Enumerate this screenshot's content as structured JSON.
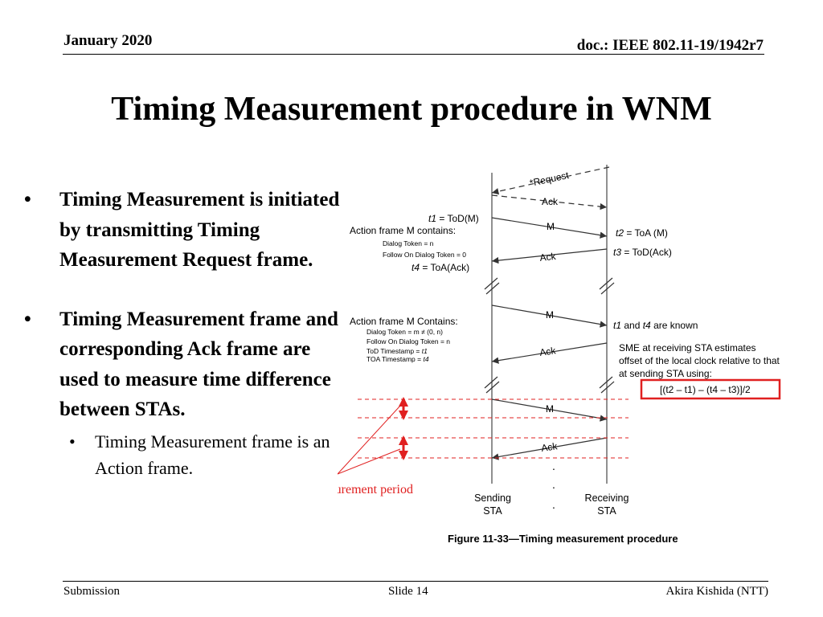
{
  "header": {
    "date": "January 2020",
    "doc": "doc.: IEEE 802.11-19/1942r7"
  },
  "title": "Timing Measurement procedure in WNM",
  "bullets": [
    {
      "text": "Timing Measurement is initiated by transmitting Timing Measurement Request frame."
    },
    {
      "text": "Timing Measurement frame and corresponding Ack frame are used to measure time difference between STAs.",
      "sub": [
        {
          "text": "Timing Measurement frame is an Action frame."
        }
      ]
    }
  ],
  "diagram": {
    "request": "*Request",
    "ack": "Ack",
    "m": "M",
    "t1_var": "t1",
    "t1_rest": " = ToD(M)",
    "t2_var": "t2",
    "t2_rest": " = ToA (M)",
    "t3_var": "t3",
    "t3_rest": " = ToD(Ack)",
    "t4_var": "t4",
    "t4_rest": " = ToA(Ack)",
    "contains1": "Action frame M contains:",
    "dialog_token_1": "Dialog Token = n",
    "follow_on_1": "Follow On Dialog Token = 0",
    "contains2": "Action frame M Contains:",
    "dialog_token_2": "Dialog Token  = m ≠ (0, n)",
    "follow_on_2": "Follow On Dialog Token = n",
    "tod_label": "ToD Timestamp = ",
    "tod_var": "t1",
    "toa_label": "TOA Timestamp = ",
    "toa_var": "t4",
    "known_t1": "t1",
    "known_and": " and ",
    "known_t4": "t4",
    "known_rest": " are known",
    "sme_1": "SME at receiving STA estimates",
    "sme_2": "offset of the local clock relative to that",
    "sme_3": "at sending STA using:",
    "formula": "[(t2 – t1) – (t4 – t3)]/2",
    "measurement_period": "Measurement period",
    "sending_1": "Sending",
    "sending_2": "STA",
    "receiving_1": "Receiving",
    "receiving_2": "STA",
    "dot": ".",
    "caption": "Figure 11-33—Timing measurement procedure"
  },
  "footer": {
    "left": "Submission",
    "slide": "Slide 14",
    "author": "Akira Kishida (NTT)"
  },
  "colors": {
    "highlight": "#e02020",
    "line": "#555555"
  }
}
